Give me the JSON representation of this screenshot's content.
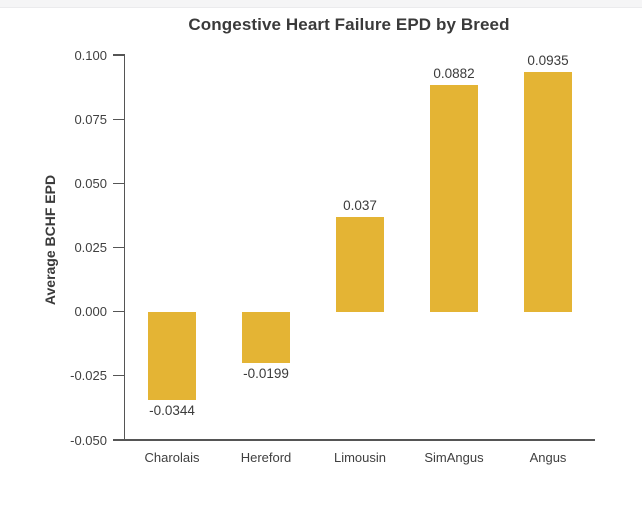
{
  "page": {
    "background_color": "#ffffff",
    "top_strip_color": "#f5f5f6"
  },
  "chart_data": {
    "type": "bar",
    "title": "Congestive Heart Failure EPD by Breed",
    "xlabel": "",
    "ylabel": "Average BCHF EPD",
    "categories": [
      "Charolais",
      "Hereford",
      "Limousin",
      "SimAngus",
      "Angus"
    ],
    "values": [
      -0.0344,
      -0.0199,
      0.037,
      0.0882,
      0.0935
    ],
    "value_labels": [
      "-0.0344",
      "-0.0199",
      "0.037",
      "0.0882",
      "0.0935"
    ],
    "ylim": [
      -0.05,
      0.1
    ],
    "yticks": [
      0.1,
      0.075,
      0.05,
      0.025,
      0.0,
      -0.025,
      -0.05
    ],
    "ytick_labels": [
      "0.100",
      "0.075",
      "0.050",
      "0.025",
      "0.000",
      "-0.025",
      "-0.050"
    ],
    "grid": false,
    "legend": null,
    "bar_color": "#e4b434",
    "axis_color": "#555555",
    "title_color": "#3a3a3a",
    "tick_label_color": "#404040",
    "value_label_color": "#3b3b3b"
  }
}
